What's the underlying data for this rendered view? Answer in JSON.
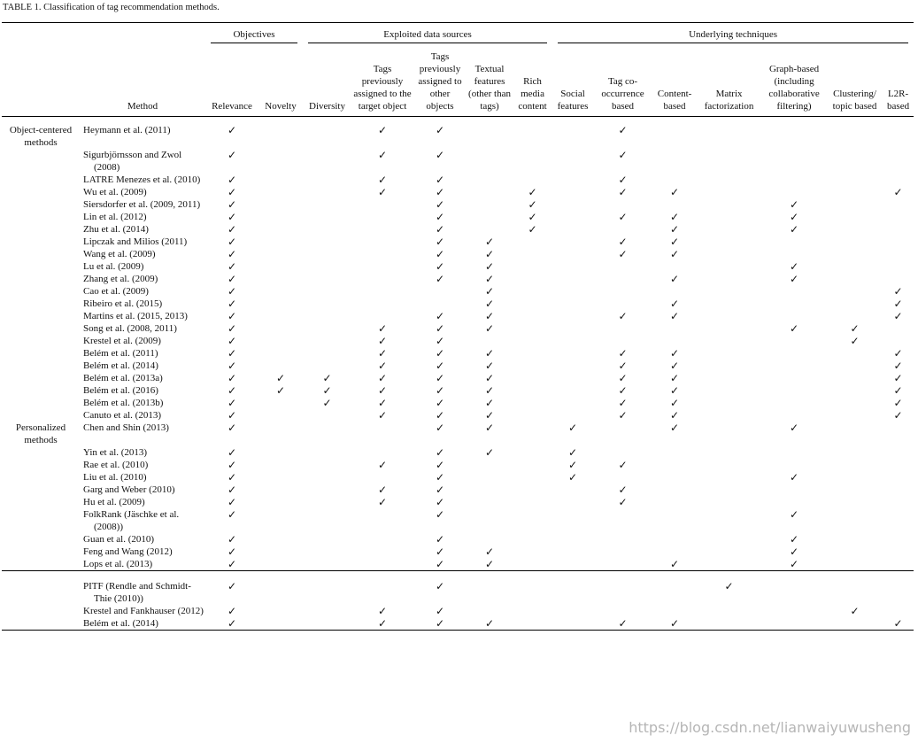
{
  "table": {
    "title": "TABLE 1.   Classification of tag recommendation methods.",
    "group_headers": [
      "Objectives",
      "Exploited data sources",
      "Underlying techniques"
    ],
    "columns": [
      "Method",
      "Relevance",
      "Novelty",
      "Diversity",
      "Tags previously assigned to the target object",
      "Tags previously assigned to other objects",
      "Textual features (other than tags)",
      "Rich media content",
      "Social features",
      "Tag co-occurrence based",
      "Content-based",
      "Matrix factorization",
      "Graph-based (including collaborative filtering)",
      "Clustering/ topic based",
      "L2R-based"
    ],
    "groups": [
      {
        "label": "Object-centered methods",
        "rows": [
          [
            "Heymann et al. (2011)",
            "✓",
            null,
            null,
            "✓",
            "✓",
            null,
            null,
            null,
            "✓",
            null,
            null,
            null,
            null,
            null
          ],
          [
            "Sigurbjörnsson and Zwol (2008)",
            "✓",
            null,
            null,
            "✓",
            "✓",
            null,
            null,
            null,
            "✓",
            null,
            null,
            null,
            null,
            null
          ],
          [
            "LATRE Menezes et al. (2010)",
            "✓",
            null,
            null,
            "✓",
            "✓",
            null,
            null,
            null,
            "✓",
            null,
            null,
            null,
            null,
            null
          ],
          [
            "Wu et al. (2009)",
            "✓",
            null,
            null,
            "✓",
            "✓",
            null,
            "✓",
            null,
            "✓",
            "✓",
            null,
            null,
            null,
            "✓"
          ],
          [
            "Siersdorfer et al. (2009, 2011)",
            "✓",
            null,
            null,
            null,
            "✓",
            null,
            "✓",
            null,
            null,
            null,
            null,
            "✓",
            null,
            null
          ],
          [
            "Lin et al. (2012)",
            "✓",
            null,
            null,
            null,
            "✓",
            null,
            "✓",
            null,
            "✓",
            "✓",
            null,
            "✓",
            null,
            null
          ],
          [
            "Zhu et al. (2014)",
            "✓",
            null,
            null,
            null,
            "✓",
            null,
            "✓",
            null,
            null,
            "✓",
            null,
            "✓",
            null,
            null
          ],
          [
            "Lipczak and Milios (2011)",
            "✓",
            null,
            null,
            null,
            "✓",
            "✓",
            null,
            null,
            "✓",
            "✓",
            null,
            null,
            null,
            null
          ],
          [
            "Wang et al. (2009)",
            "✓",
            null,
            null,
            null,
            "✓",
            "✓",
            null,
            null,
            "✓",
            "✓",
            null,
            null,
            null,
            null
          ],
          [
            "Lu et al. (2009)",
            "✓",
            null,
            null,
            null,
            "✓",
            "✓",
            null,
            null,
            null,
            null,
            null,
            "✓",
            null,
            null
          ],
          [
            "Zhang et al. (2009)",
            "✓",
            null,
            null,
            null,
            "✓",
            "✓",
            null,
            null,
            null,
            "✓",
            null,
            "✓",
            null,
            null
          ],
          [
            "Cao et al. (2009)",
            "✓",
            null,
            null,
            null,
            null,
            "✓",
            null,
            null,
            null,
            null,
            null,
            null,
            null,
            "✓"
          ],
          [
            "Ribeiro et al. (2015)",
            "✓",
            null,
            null,
            null,
            null,
            "✓",
            null,
            null,
            null,
            "✓",
            null,
            null,
            null,
            "✓"
          ],
          [
            "Martins et al. (2015, 2013)",
            "✓",
            null,
            null,
            null,
            "✓",
            "✓",
            null,
            null,
            "✓",
            "✓",
            null,
            null,
            null,
            "✓"
          ],
          [
            "Song et al. (2008, 2011)",
            "✓",
            null,
            null,
            "✓",
            "✓",
            "✓",
            null,
            null,
            null,
            null,
            null,
            "✓",
            "✓",
            null
          ],
          [
            "Krestel et al. (2009)",
            "✓",
            null,
            null,
            "✓",
            "✓",
            null,
            null,
            null,
            null,
            null,
            null,
            null,
            "✓",
            null
          ],
          [
            "Belém et al. (2011)",
            "✓",
            null,
            null,
            "✓",
            "✓",
            "✓",
            null,
            null,
            "✓",
            "✓",
            null,
            null,
            null,
            "✓"
          ],
          [
            "Belém et al. (2014)",
            "✓",
            null,
            null,
            "✓",
            "✓",
            "✓",
            null,
            null,
            "✓",
            "✓",
            null,
            null,
            null,
            "✓"
          ],
          [
            "Belém et al. (2013a)",
            "✓",
            "✓",
            "✓",
            "✓",
            "✓",
            "✓",
            null,
            null,
            "✓",
            "✓",
            null,
            null,
            null,
            "✓"
          ],
          [
            "Belém et al. (2016)",
            "✓",
            "✓",
            "✓",
            "✓",
            "✓",
            "✓",
            null,
            null,
            "✓",
            "✓",
            null,
            null,
            null,
            "✓"
          ],
          [
            "Belém et al. (2013b)",
            "✓",
            null,
            "✓",
            "✓",
            "✓",
            "✓",
            null,
            null,
            "✓",
            "✓",
            null,
            null,
            null,
            "✓"
          ],
          [
            "Canuto et al. (2013)",
            "✓",
            null,
            null,
            "✓",
            "✓",
            "✓",
            null,
            null,
            "✓",
            "✓",
            null,
            null,
            null,
            "✓"
          ]
        ]
      },
      {
        "label": "Personalized methods",
        "rows": [
          [
            "Chen and Shin (2013)",
            "✓",
            null,
            null,
            null,
            "✓",
            "✓",
            null,
            "✓",
            null,
            "✓",
            null,
            "✓",
            null,
            null
          ],
          [
            "Yin et al. (2013)",
            "✓",
            null,
            null,
            null,
            "✓",
            "✓",
            null,
            "✓",
            null,
            null,
            null,
            null,
            null,
            null
          ],
          [
            "Rae et al. (2010)",
            "✓",
            null,
            null,
            "✓",
            "✓",
            null,
            null,
            "✓",
            "✓",
            null,
            null,
            null,
            null,
            null
          ],
          [
            "Liu et al. (2010)",
            "✓",
            null,
            null,
            null,
            "✓",
            null,
            null,
            "✓",
            null,
            null,
            null,
            "✓",
            null,
            null
          ],
          [
            "Garg and Weber (2010)",
            "✓",
            null,
            null,
            "✓",
            "✓",
            null,
            null,
            null,
            "✓",
            null,
            null,
            null,
            null,
            null
          ],
          [
            "Hu et al. (2009)",
            "✓",
            null,
            null,
            "✓",
            "✓",
            null,
            null,
            null,
            "✓",
            null,
            null,
            null,
            null,
            null
          ],
          [
            "FolkRank (Jäschke et al. (2008))",
            "✓",
            null,
            null,
            null,
            "✓",
            null,
            null,
            null,
            null,
            null,
            null,
            "✓",
            null,
            null
          ],
          [
            "Guan et al. (2010)",
            "✓",
            null,
            null,
            null,
            "✓",
            null,
            null,
            null,
            null,
            null,
            null,
            "✓",
            null,
            null
          ],
          [
            "Feng and Wang (2012)",
            "✓",
            null,
            null,
            null,
            "✓",
            "✓",
            null,
            null,
            null,
            null,
            null,
            "✓",
            null,
            null
          ],
          [
            "Lops et al. (2013)",
            "✓",
            null,
            null,
            null,
            "✓",
            "✓",
            null,
            null,
            null,
            "✓",
            null,
            "✓",
            null,
            null
          ]
        ]
      },
      {
        "rows": [
          [
            "PITF (Rendle and Schmidt-Thie (2010))",
            "✓",
            null,
            null,
            null,
            "✓",
            null,
            null,
            null,
            null,
            null,
            "✓",
            null,
            null,
            null
          ],
          [
            "Krestel and Fankhauser (2012)",
            "✓",
            null,
            null,
            "✓",
            "✓",
            null,
            null,
            null,
            null,
            null,
            null,
            null,
            "✓",
            null
          ],
          [
            "Belém et al. (2014)",
            "✓",
            null,
            null,
            "✓",
            "✓",
            "✓",
            null,
            null,
            "✓",
            "✓",
            null,
            null,
            null,
            "✓"
          ]
        ]
      }
    ]
  },
  "watermark": "https://blog.csdn.net/lianwaiyuwusheng"
}
